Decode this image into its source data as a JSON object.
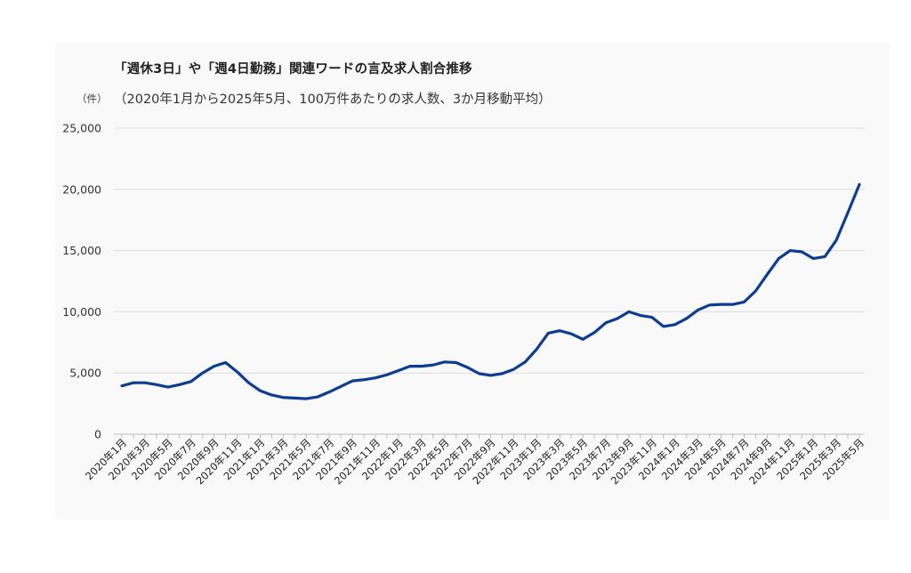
{
  "chart_data": {
    "type": "line",
    "title": "「週休3日」や「週4日勤務」関連ワードの言及求人割合推移",
    "subtitle": "（2020年1月から2025年5月、100万件あたりの求人数、3か月移動平均）",
    "ylabel": "（件）",
    "xlabel": "",
    "ylim": [
      0,
      25000
    ],
    "yticks": [
      0,
      5000,
      10000,
      15000,
      20000,
      25000
    ],
    "ytick_labels": [
      "0",
      "5,000",
      "10,000",
      "15,000",
      "20,000",
      "25,000"
    ],
    "grid": true,
    "legend": "none",
    "x": [
      "2020年1月",
      "2020年2月",
      "2020年3月",
      "2020年4月",
      "2020年5月",
      "2020年6月",
      "2020年7月",
      "2020年8月",
      "2020年9月",
      "2020年10月",
      "2020年11月",
      "2020年12月",
      "2021年1月",
      "2021年2月",
      "2021年3月",
      "2021年4月",
      "2021年5月",
      "2021年6月",
      "2021年7月",
      "2021年8月",
      "2021年9月",
      "2021年10月",
      "2021年11月",
      "2021年12月",
      "2022年1月",
      "2022年2月",
      "2022年3月",
      "2022年4月",
      "2022年5月",
      "2022年6月",
      "2022年7月",
      "2022年8月",
      "2022年9月",
      "2022年10月",
      "2022年11月",
      "2022年12月",
      "2023年1月",
      "2023年2月",
      "2023年3月",
      "2023年4月",
      "2023年5月",
      "2023年6月",
      "2023年7月",
      "2023年8月",
      "2023年9月",
      "2023年10月",
      "2023年11月",
      "2023年12月",
      "2024年1月",
      "2024年2月",
      "2024年3月",
      "2024年4月",
      "2024年5月",
      "2024年6月",
      "2024年7月",
      "2024年8月",
      "2024年9月",
      "2024年10月",
      "2024年11月",
      "2024年12月",
      "2025年1月",
      "2025年2月",
      "2025年3月",
      "2025年4月",
      "2025年5月"
    ],
    "xtick_labels": [
      "2020年1月",
      "2020年3月",
      "2020年5月",
      "2020年7月",
      "2020年9月",
      "2020年11月",
      "2021年1月",
      "2021年3月",
      "2021年5月",
      "2021年7月",
      "2021年9月",
      "2021年11月",
      "2022年1月",
      "2022年3月",
      "2022年5月",
      "2022年7月",
      "2022年9月",
      "2022年11月",
      "2023年1月",
      "2023年3月",
      "2023年5月",
      "2023年7月",
      "2023年9月",
      "2023年11月",
      "2024年1月",
      "2024年3月",
      "2024年5月",
      "2024年7月",
      "2024年9月",
      "2024年11月",
      "2025年1月",
      "2025年3月",
      "2025年5月"
    ],
    "series": [
      {
        "color": "#0d3d91",
        "values": [
          3950,
          4200,
          4200,
          4050,
          3850,
          4050,
          4300,
          5000,
          5550,
          5850,
          5100,
          4200,
          3550,
          3200,
          3000,
          2950,
          2900,
          3050,
          3450,
          3900,
          4350,
          4450,
          4600,
          4850,
          5200,
          5550,
          5550,
          5650,
          5900,
          5850,
          5450,
          4950,
          4800,
          4950,
          5300,
          5900,
          6950,
          8250,
          8450,
          8200,
          7750,
          8300,
          9100,
          9450,
          10000,
          9700,
          9550,
          8800,
          8950,
          9450,
          10150,
          10550,
          10600,
          10600,
          10800,
          11700,
          13050,
          14350,
          15000,
          14900,
          14350,
          14500,
          15850,
          18100,
          20400
        ]
      }
    ]
  }
}
